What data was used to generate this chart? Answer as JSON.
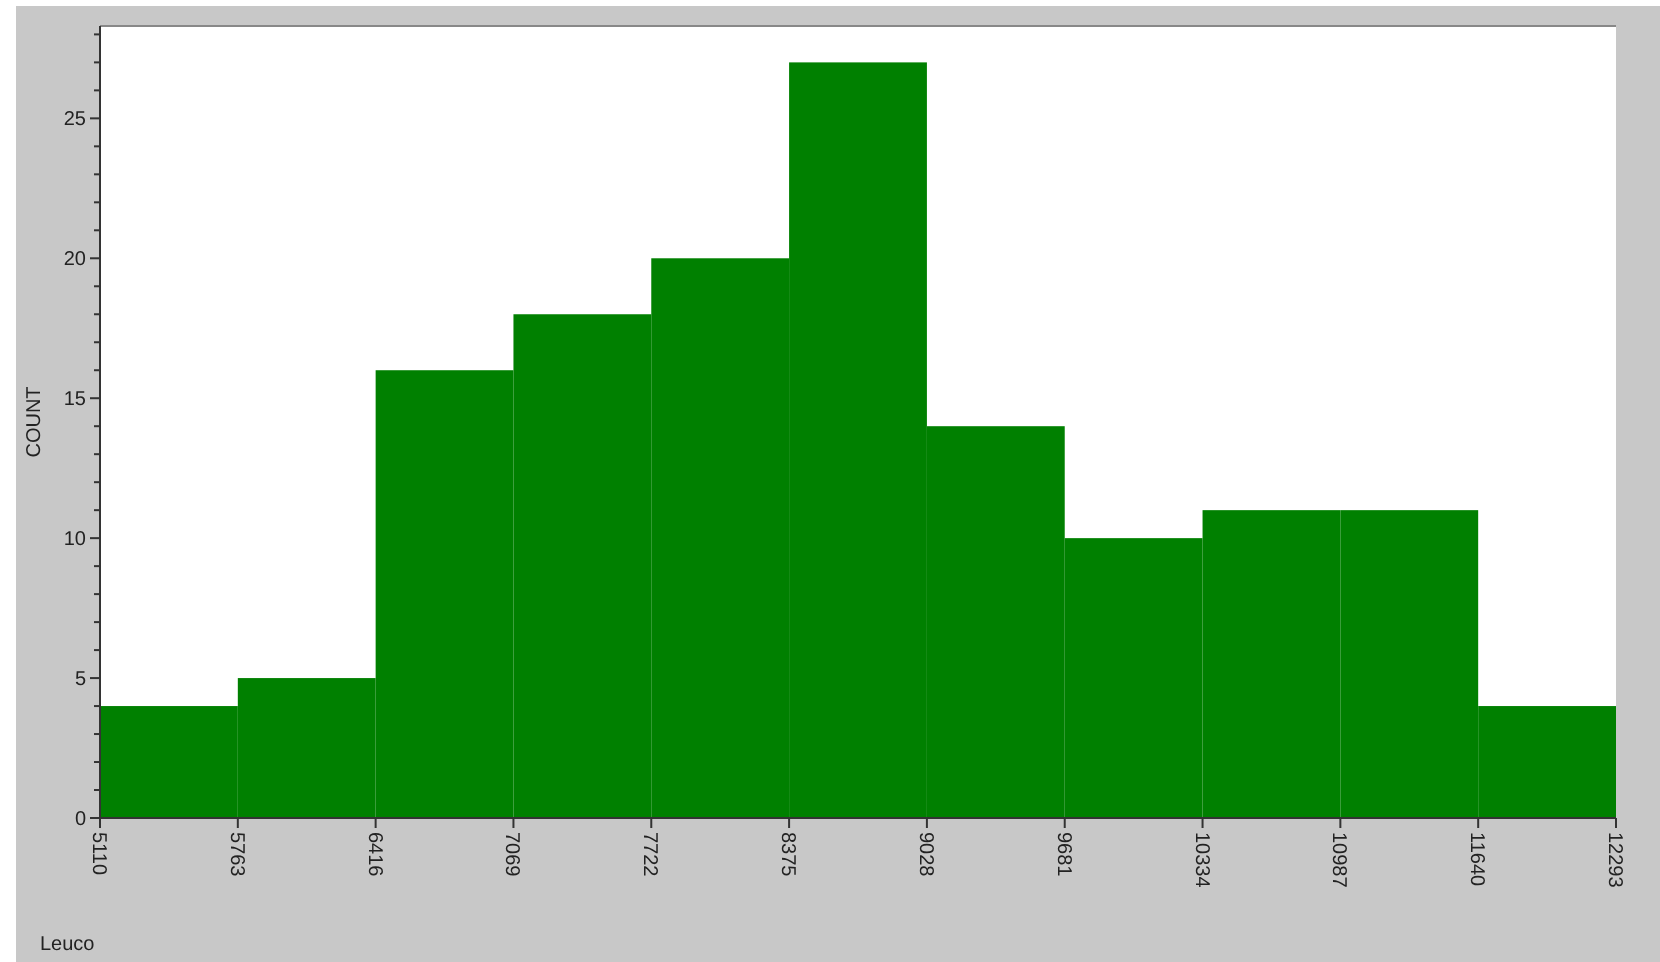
{
  "chart_data": {
    "type": "histogram",
    "xlabel": "Leuco",
    "ylabel": "COUNT",
    "bins": [
      5110,
      5763,
      6416,
      7069,
      7722,
      8375,
      9028,
      9681,
      10334,
      10987,
      11640,
      12293
    ],
    "values": [
      4,
      5,
      16,
      18,
      20,
      27,
      14,
      10,
      11,
      11,
      4
    ],
    "color": "#008000",
    "xlim": [
      5110,
      12293
    ],
    "xticks": [
      5110,
      5763,
      6416,
      7069,
      7722,
      8375,
      9028,
      9681,
      10334,
      10987,
      11640,
      12293
    ],
    "ylim": [
      0,
      28.3
    ],
    "yticks": [
      0,
      {
        "value": 1,
        "label": null
      },
      {
        "value": 2,
        "label": null
      },
      {
        "value": 3,
        "label": null
      },
      {
        "value": 4,
        "label": null
      },
      5,
      {
        "value": 6,
        "label": null
      },
      {
        "value": 7,
        "label": null
      },
      {
        "value": 8,
        "label": null
      },
      {
        "value": 9,
        "label": null
      },
      10,
      {
        "value": 11,
        "label": null
      },
      {
        "value": 12,
        "label": null
      },
      {
        "value": 13,
        "label": null
      },
      {
        "value": 14,
        "label": null
      },
      15,
      {
        "value": 16,
        "label": null
      },
      {
        "value": 17,
        "label": null
      },
      {
        "value": 18,
        "label": null
      },
      {
        "value": 19,
        "label": null
      },
      20,
      {
        "value": 21,
        "label": null
      },
      {
        "value": 22,
        "label": null
      },
      {
        "value": 23,
        "label": null
      },
      {
        "value": 24,
        "label": null
      },
      25,
      {
        "value": 26,
        "label": null
      },
      {
        "value": 27,
        "label": null
      },
      {
        "value": 28,
        "label": null
      }
    ],
    "grid": false
  }
}
